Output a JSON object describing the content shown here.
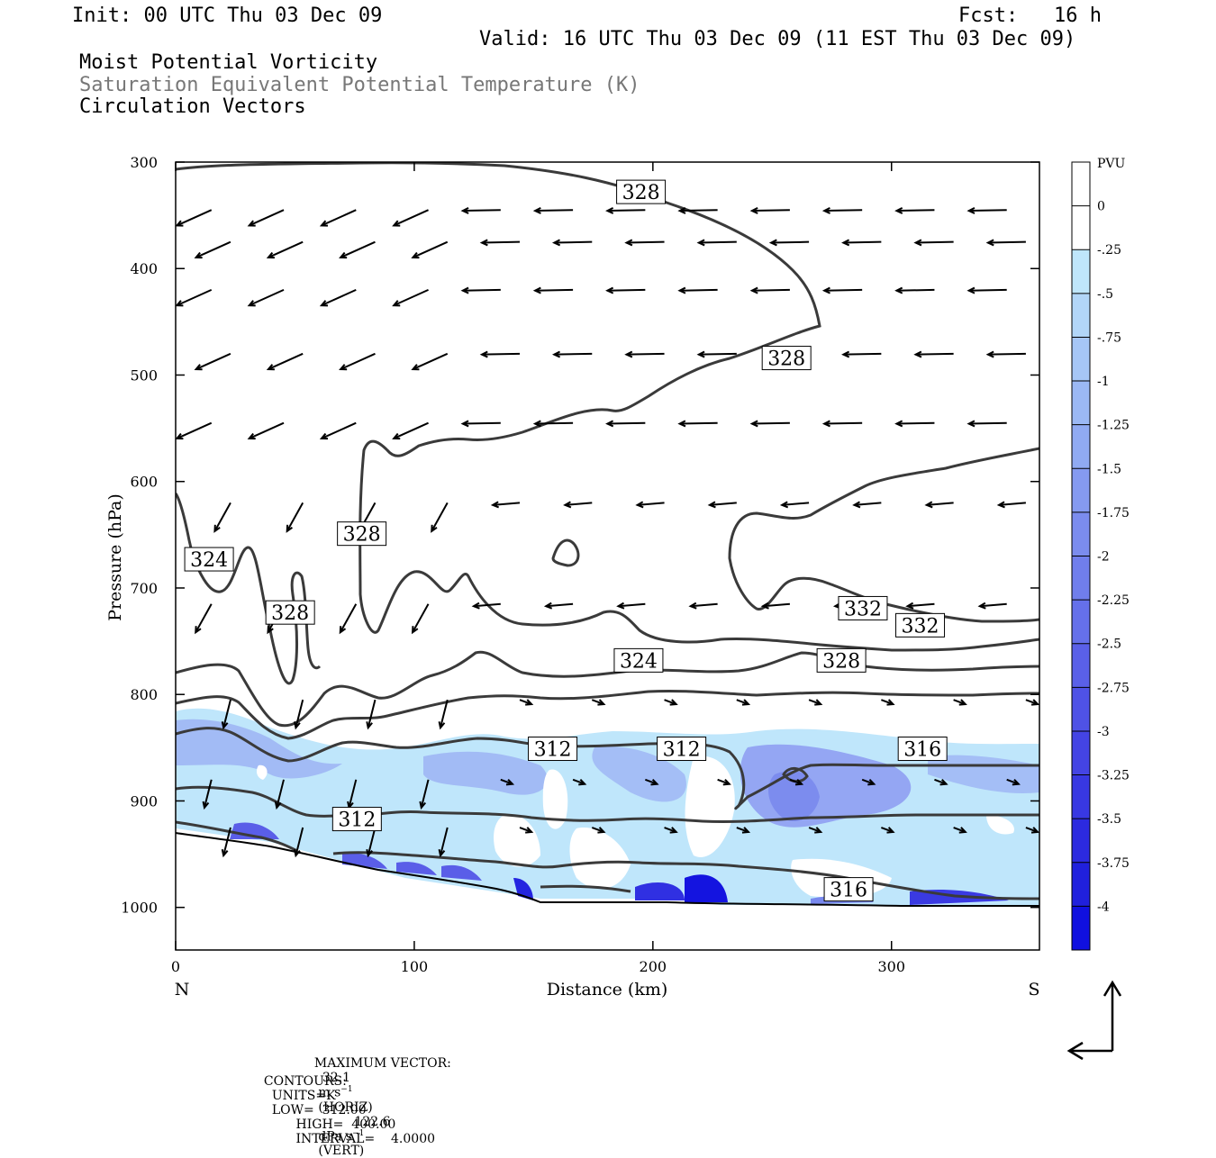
{
  "header": {
    "init": "Init: 00 UTC Thu 03 Dec 09",
    "fcst": "Fcst:   16 h",
    "valid": "Valid: 16 UTC Thu 03 Dec 09 (11 EST Thu 03 Dec 09)",
    "field1": "Moist Potential Vorticity",
    "field2": "Saturation Equivalent Potential Temperature (K)",
    "field3": "Circulation Vectors"
  },
  "chart_data": {
    "type": "cross-section",
    "xlabel": "Distance (km)",
    "ylabel": "Pressure (hPa)",
    "xlim": [
      0,
      362
    ],
    "ylim": [
      1040,
      300
    ],
    "x_ticks": [
      0,
      100,
      200,
      300
    ],
    "y_ticks": [
      300,
      400,
      500,
      600,
      700,
      800,
      900,
      1000
    ],
    "end_labels": {
      "left": "N",
      "right": "S"
    },
    "colorbar": {
      "unit": "PVU",
      "levels": [
        "0",
        "-.25",
        "-.5",
        "-.75",
        "-1",
        "-1.25",
        "-1.5",
        "-1.75",
        "-2",
        "-2.25",
        "-2.5",
        "-2.75",
        "-3",
        "-3.25",
        "-3.5",
        "-3.75",
        "-4"
      ],
      "colors": [
        "#ffffff",
        "#ffffff",
        "#bfe6fb",
        "#b2d6f8",
        "#a6c6f6",
        "#9bb8f4",
        "#90aaf2",
        "#859af0",
        "#7b8cee",
        "#707eec",
        "#6570ea",
        "#5a60e8",
        "#4f52e6",
        "#4444e4",
        "#3838e2",
        "#2c2ae0",
        "#2020dd",
        "#1010e0"
      ]
    },
    "contour_labels": [
      {
        "text": "328",
        "x": 195,
        "p": 328
      },
      {
        "text": "328",
        "x": 256,
        "p": 484
      },
      {
        "text": "328",
        "x": 78,
        "p": 649
      },
      {
        "text": "324",
        "x": 14,
        "p": 673
      },
      {
        "text": "328",
        "x": 48,
        "p": 723
      },
      {
        "text": "332",
        "x": 288,
        "p": 719
      },
      {
        "text": "332",
        "x": 312,
        "p": 735
      },
      {
        "text": "324",
        "x": 194,
        "p": 768
      },
      {
        "text": "328",
        "x": 279,
        "p": 768
      },
      {
        "text": "312",
        "x": 158,
        "p": 851
      },
      {
        "text": "312",
        "x": 212,
        "p": 851
      },
      {
        "text": "316",
        "x": 313,
        "p": 851
      },
      {
        "text": "312",
        "x": 76,
        "p": 917
      },
      {
        "text": "316",
        "x": 282,
        "p": 983
      }
    ],
    "max_vector": {
      "horiz": "32.1",
      "horiz_unit": "m s",
      "vert": "122.6",
      "vert_unit": "dPa s"
    },
    "contours": {
      "units": "K",
      "low": "312.00",
      "high": "400.00",
      "interval": "4.0000"
    }
  },
  "footer": {
    "max_vector_label": "MAXIMUM VECTOR:",
    "horiz_tag": "(HORIZ)",
    "vert_tag": "(VERT)",
    "contours_label": "CONTOURS:",
    "units_label": "UNITS=",
    "low_label": "LOW=",
    "high_label": "HIGH=",
    "interval_label": "INTERVAL="
  },
  "colors": {
    "contour": "#3a3a3a",
    "vector": "#000000",
    "header_gray": "#777777"
  }
}
